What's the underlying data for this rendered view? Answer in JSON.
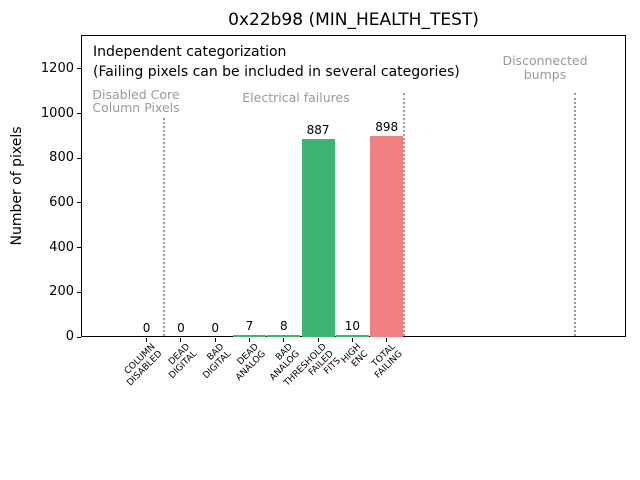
{
  "window": {
    "background": "#ffffff"
  },
  "header": {
    "title": "0x22b98 (MIN_HEALTH_TEST)"
  },
  "notes": {
    "line1": "Independent categorization",
    "line2": "(Failing pixels can be included in several categories)"
  },
  "regions": [
    {
      "name": "disabled-core-column-pixels",
      "label": "Disabled Core\nColumn Pixels"
    },
    {
      "name": "electrical-failures",
      "label": "Electrical failures"
    },
    {
      "name": "disconnected-bumps",
      "label": "Disconnected\nbumps"
    }
  ],
  "colors": {
    "bar_green": "#3CB371",
    "bar_red": "#F08080",
    "annotation_gray": "#999999",
    "separator_gray": "#999999",
    "text": "#000000"
  },
  "chart_data": {
    "type": "bar",
    "title": "0x22b98 (MIN_HEALTH_TEST)",
    "xlabel": "",
    "ylabel": "Number of pixels",
    "categories": [
      "COLUMN\nDISABLED",
      "DEAD\nDIGITAL",
      "BAD\nDIGITAL",
      "DEAD\nANALOG",
      "BAD\nANALOG",
      "THRESHOLD\nFAILED\nFITS",
      "HIGH\nENC",
      "TOTAL\nFAILING"
    ],
    "values": [
      0,
      0,
      0,
      7,
      8,
      887,
      10,
      898
    ],
    "value_labels": [
      "0",
      "0",
      "0",
      "7",
      "8",
      "887",
      "10",
      "898"
    ],
    "bar_colors": [
      "#3CB371",
      "#3CB371",
      "#3CB371",
      "#3CB371",
      "#3CB371",
      "#3CB371",
      "#3CB371",
      "#F08080"
    ],
    "ylim": [
      0,
      1352
    ],
    "yticks": [
      0,
      200,
      400,
      600,
      800,
      1000,
      1200
    ],
    "xlim": [
      -1.91,
      13.98
    ],
    "grid": false,
    "legend": "none",
    "separators_x": [
      0.5,
      7.5,
      12.5
    ],
    "annotations": [
      {
        "text": "Independent categorization\n(Failing pixels can be included in several categories)",
        "color": "#000000"
      },
      {
        "text": "Disabled Core\nColumn Pixels",
        "color": "#999999"
      },
      {
        "text": "Electrical failures",
        "color": "#999999"
      },
      {
        "text": "Disconnected\nbumps",
        "color": "#999999"
      }
    ]
  }
}
